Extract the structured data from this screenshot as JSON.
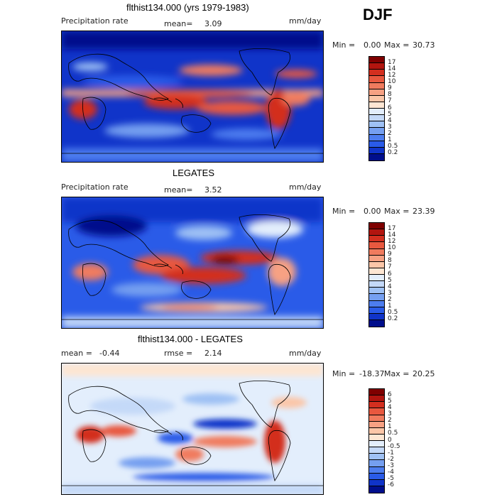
{
  "season": "DJF",
  "panels": [
    {
      "title": "flthist134.000 (yrs 1979-1983)",
      "left_label": "Precipitation rate",
      "stat_label": "mean=",
      "stat_value": "3.09",
      "unit": "mm/day",
      "min_label": "Min =",
      "min_value": "0.00",
      "max_label": "Max =",
      "max_value": "30.73",
      "colorbar_labels": [
        "17",
        "14",
        "12",
        "10",
        "9",
        "8",
        "7",
        "6",
        "5",
        "4",
        "3",
        "2",
        "1",
        "0.5",
        "0.2"
      ],
      "colorbar_colors": [
        "#7f0000",
        "#b2150f",
        "#d32f1f",
        "#e8583f",
        "#f07b5e",
        "#f7a183",
        "#fbc6a8",
        "#fde6d3",
        "#e3eefc",
        "#c4d9f8",
        "#9fc1f4",
        "#759ff0",
        "#4d7def",
        "#2a5be8",
        "#1034c9",
        "#000e8c"
      ]
    },
    {
      "title": "LEGATES",
      "left_label": "Precipitation rate",
      "stat_label": "mean=",
      "stat_value": "3.52",
      "unit": "mm/day",
      "min_label": "Min =",
      "min_value": "0.00",
      "max_label": "Max =",
      "max_value": "23.39",
      "colorbar_labels": [
        "17",
        "14",
        "12",
        "10",
        "9",
        "8",
        "7",
        "6",
        "5",
        "4",
        "3",
        "2",
        "1",
        "0.5",
        "0.2"
      ],
      "colorbar_colors": [
        "#7f0000",
        "#b2150f",
        "#d32f1f",
        "#e8583f",
        "#f07b5e",
        "#f7a183",
        "#fbc6a8",
        "#fde6d3",
        "#e3eefc",
        "#c4d9f8",
        "#9fc1f4",
        "#759ff0",
        "#4d7def",
        "#2a5be8",
        "#1034c9",
        "#000e8c"
      ]
    },
    {
      "title": "flthist134.000 - LEGATES",
      "left_label": "mean =",
      "left_value": "-0.44",
      "stat_label": "rmse =",
      "stat_value": "2.14",
      "unit": "mm/day",
      "min_label": "Min =",
      "min_value": "-18.37",
      "max_label": "Max =",
      "max_value": "20.25",
      "colorbar_labels": [
        "6",
        "5",
        "4",
        "3",
        "2",
        "1",
        "0.5",
        "0",
        "-0.5",
        "-1",
        "-2",
        "-3",
        "-4",
        "-5",
        "-6"
      ],
      "colorbar_colors": [
        "#7f0000",
        "#b2150f",
        "#d32f1f",
        "#e8583f",
        "#f07b5e",
        "#f7a183",
        "#fbc6a8",
        "#fde6d3",
        "#e3eefc",
        "#c4d9f8",
        "#9fc1f4",
        "#759ff0",
        "#4d7def",
        "#2a5be8",
        "#1034c9",
        "#000e8c"
      ]
    }
  ]
}
